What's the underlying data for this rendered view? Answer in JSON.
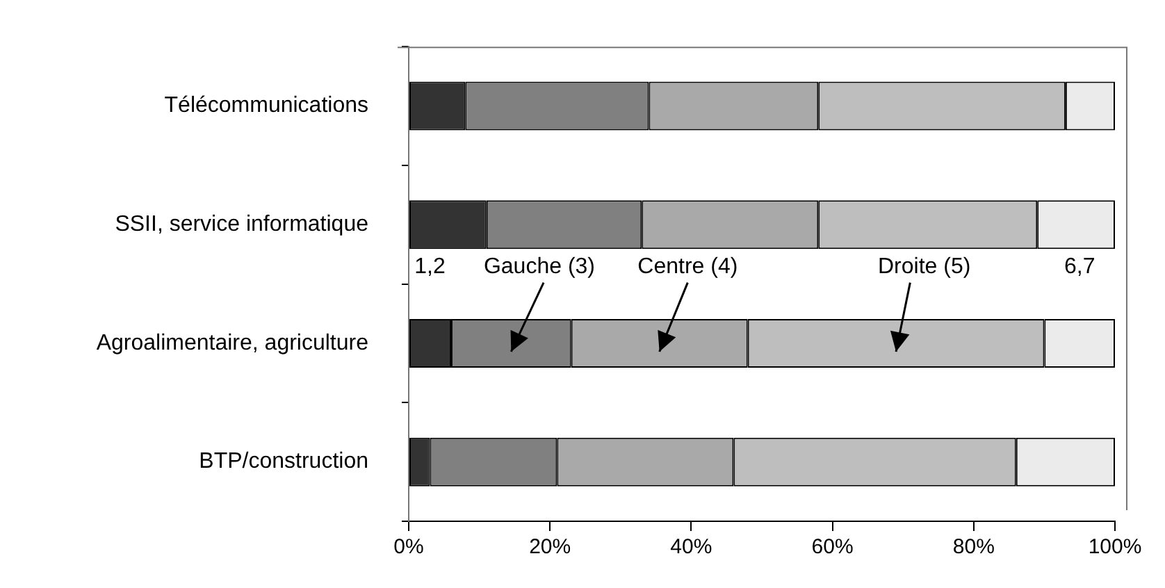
{
  "chart_data": {
    "type": "bar",
    "orientation": "horizontal",
    "stacked": true,
    "legend": false,
    "grid": false,
    "categories": [
      "Télécommunications",
      "SSII, service informatique",
      "Agroalimentaire, agriculture",
      "BTP/construction"
    ],
    "xlim": [
      0,
      100
    ],
    "xticks": [
      {
        "value": 0,
        "label": "0%"
      },
      {
        "value": 20,
        "label": "20%"
      },
      {
        "value": 40,
        "label": "40%"
      },
      {
        "value": 60,
        "label": "60%"
      },
      {
        "value": 80,
        "label": "80%"
      },
      {
        "value": 100,
        "label": "100%"
      }
    ],
    "series": [
      {
        "name": "1,2",
        "color": "#333333",
        "values": [
          8,
          11,
          6,
          3
        ]
      },
      {
        "name": "Gauche (3)",
        "color": "#808080",
        "values": [
          26,
          22,
          17,
          18
        ]
      },
      {
        "name": "Centre (4)",
        "color": "#a9a9a9",
        "values": [
          24,
          25,
          25,
          25
        ]
      },
      {
        "name": "Droite (5)",
        "color": "#bebebe",
        "values": [
          35,
          31,
          42,
          40
        ]
      },
      {
        "name": "6,7",
        "color": "#ebebeb",
        "values": [
          7,
          11,
          10,
          14
        ]
      }
    ]
  }
}
